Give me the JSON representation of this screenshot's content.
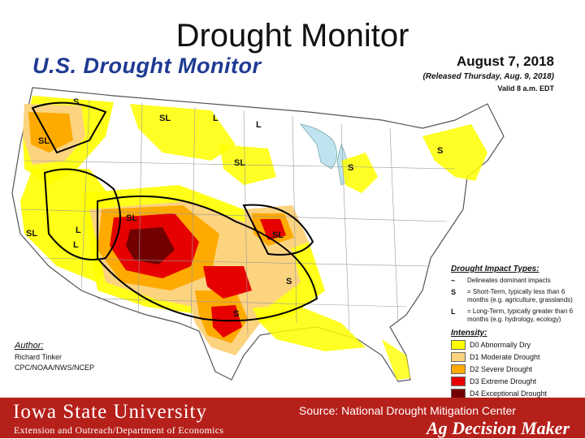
{
  "slide": {
    "title": "Drought Monitor"
  },
  "map": {
    "heading": "U.S. Drought Monitor",
    "date": "August 7, 2018",
    "released": "(Released Thursday, Aug. 9, 2018)",
    "valid": "Valid 8 a.m. EDT",
    "region_labels": [
      "S",
      "SL",
      "L",
      "L",
      "SL",
      "SL",
      "L",
      "L",
      "S",
      "S",
      "SL",
      "SL",
      "S",
      "SL",
      "S"
    ],
    "author": {
      "title": "Author:",
      "name": "Richard Tinker",
      "org": "CPC/NOAA/NWS/NCEP"
    },
    "impact": {
      "title": "Drought Impact Types:",
      "delineates": "Delineates dominant impacts",
      "s_symbol": "S",
      "s_text": "= Short-Term, typically less than 6 months (e.g. agriculture, grasslands)",
      "l_symbol": "L",
      "l_text": "= Long-Term, typically greater than 6 months (e.g. hydrology, ecology)"
    },
    "intensity": {
      "title": "Intensity:",
      "levels": [
        {
          "label": "D0 Abnormally Dry",
          "color": "#ffff00"
        },
        {
          "label": "D1 Moderate Drought",
          "color": "#fcd37f"
        },
        {
          "label": "D2 Severe Drought",
          "color": "#ffaa00"
        },
        {
          "label": "D3 Extreme Drought",
          "color": "#e60000"
        },
        {
          "label": "D4 Exceptional Drought",
          "color": "#730000"
        }
      ]
    }
  },
  "footer": {
    "university": "Iowa State University",
    "department": "Extension and Outreach/Department of Economics",
    "source": "Source: National Drought Mitigation Center",
    "brand": "Ag Decision Maker"
  }
}
